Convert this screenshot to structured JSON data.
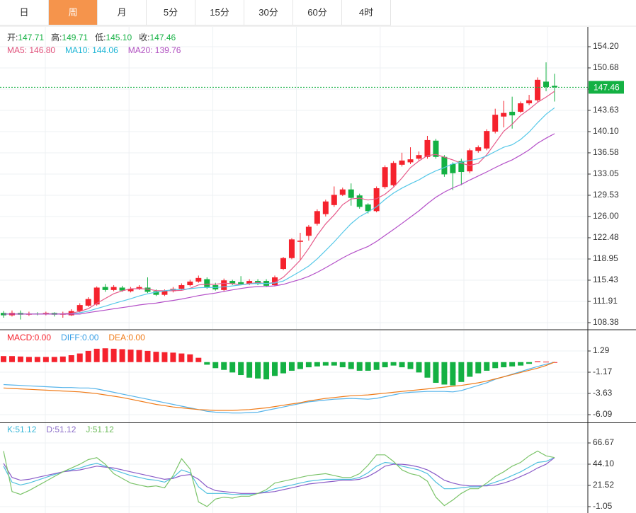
{
  "tabs": {
    "items": [
      "日",
      "周",
      "月",
      "5分",
      "15分",
      "30分",
      "60分",
      "4时"
    ],
    "active": 1
  },
  "chart_data": [
    {
      "type": "candlestick",
      "header": [
        {
          "label": "开:",
          "value": "147.71"
        },
        {
          "label": "高:",
          "value": "149.71"
        },
        {
          "label": "低:",
          "value": "145.10"
        },
        {
          "label": "收:",
          "value": "147.46"
        }
      ],
      "legend": [
        {
          "text": "MA5: 146.80",
          "color": "#e0507a"
        },
        {
          "text": "MA10: 144.06",
          "color": "#1cb5d5"
        },
        {
          "text": "MA20: 139.76",
          "color": "#b04ec0"
        }
      ],
      "up_color": "#f5222d",
      "down_color": "#14b143",
      "open": [
        110.0,
        109.6,
        110.0,
        109.7,
        109.9,
        109.8,
        110.0,
        109.7,
        109.6,
        110.3,
        111.2,
        111.4,
        114.3,
        113.8,
        114.2,
        113.6,
        114.0,
        114.2,
        113.6,
        113.0,
        113.6,
        114.0,
        114.6,
        115.2,
        115.6,
        114.6,
        113.8,
        115.3,
        115.1,
        114.8,
        115.3,
        115.3,
        114.6,
        117.3,
        119.1,
        121.8,
        122.8,
        124.8,
        126.4,
        127.9,
        129.6,
        130.5,
        129.5,
        128.0,
        126.9,
        130.9,
        131.2,
        134.6,
        135.0,
        135.6,
        135.9,
        138.6,
        135.9,
        134.7,
        135.2,
        133.5,
        136.9,
        137.3,
        140.1,
        142.6,
        143.4,
        143.4,
        144.8,
        145.3,
        148.4,
        147.71
      ],
      "high": [
        110.3,
        110.4,
        110.4,
        110.2,
        110.1,
        110.2,
        110.1,
        110.2,
        110.6,
        111.6,
        112.6,
        114.4,
        114.8,
        114.6,
        114.5,
        114.3,
        114.6,
        115.9,
        113.9,
        113.9,
        114.3,
        114.9,
        115.5,
        116.2,
        115.9,
        115.0,
        115.7,
        115.5,
        116.1,
        115.6,
        115.6,
        115.6,
        116.2,
        119.3,
        122.4,
        123.3,
        124.6,
        127.2,
        128.8,
        131.0,
        130.8,
        131.5,
        129.8,
        128.2,
        131.0,
        134.5,
        135.2,
        136.6,
        137.5,
        136.8,
        139.4,
        138.9,
        136.2,
        135.0,
        135.6,
        137.3,
        137.8,
        140.5,
        143.9,
        145.2,
        145.9,
        145.1,
        146.2,
        149.1,
        151.6,
        149.71
      ],
      "low": [
        109.2,
        109.4,
        108.9,
        109.5,
        109.6,
        109.6,
        109.4,
        109.2,
        109.5,
        110.1,
        111.0,
        111.2,
        113.5,
        113.6,
        113.5,
        113.4,
        113.8,
        113.3,
        112.8,
        112.8,
        113.4,
        113.8,
        114.4,
        115.0,
        114.0,
        113.7,
        113.6,
        114.6,
        114.6,
        114.6,
        114.6,
        114.3,
        114.4,
        117.1,
        118.9,
        118.8,
        122.0,
        124.5,
        126.0,
        127.6,
        129.4,
        127.8,
        127.3,
        126.5,
        126.7,
        130.6,
        131.0,
        134.3,
        134.7,
        135.3,
        135.6,
        135.6,
        132.6,
        130.4,
        131.2,
        133.2,
        136.6,
        137.0,
        139.8,
        140.8,
        140.6,
        143.2,
        144.5,
        145.0,
        146.8,
        145.1
      ],
      "close": [
        109.6,
        110.0,
        109.7,
        109.9,
        109.8,
        110.0,
        109.7,
        109.9,
        110.3,
        111.3,
        112.3,
        114.2,
        113.8,
        114.3,
        113.7,
        114.0,
        114.3,
        113.5,
        113.0,
        113.6,
        114.0,
        114.6,
        115.2,
        115.8,
        114.3,
        113.9,
        115.4,
        114.9,
        114.8,
        115.3,
        114.8,
        114.5,
        115.9,
        119.1,
        122.2,
        122.0,
        124.3,
        126.9,
        128.5,
        129.6,
        130.5,
        129.1,
        127.6,
        126.9,
        130.7,
        134.2,
        134.9,
        135.3,
        135.5,
        136.2,
        138.7,
        135.9,
        133.0,
        133.2,
        133.4,
        137.0,
        137.5,
        140.2,
        142.9,
        143.2,
        142.8,
        144.8,
        145.3,
        148.7,
        147.5,
        147.46
      ],
      "series": [
        {
          "name": "MA5",
          "color": "#e65a8a",
          "values": [
            109.8,
            109.8,
            109.8,
            109.8,
            109.8,
            109.88,
            109.82,
            109.86,
            109.94,
            110.24,
            110.7,
            111.6,
            112.38,
            113.18,
            113.66,
            114.0,
            114.02,
            113.96,
            113.7,
            113.68,
            113.68,
            113.74,
            114.08,
            114.64,
            114.78,
            114.76,
            114.92,
            114.86,
            114.66,
            114.86,
            115.04,
            114.86,
            115.06,
            115.92,
            117.3,
            118.74,
            120.7,
            122.9,
            124.78,
            126.26,
            127.96,
            128.92,
            129.06,
            128.74,
            128.96,
            129.7,
            130.86,
            132.4,
            134.12,
            135.22,
            136.12,
            136.32,
            135.86,
            135.4,
            134.84,
            134.5,
            134.82,
            136.26,
            138.2,
            140.16,
            141.32,
            142.78,
            143.8,
            144.96,
            145.82,
            146.8
          ]
        },
        {
          "name": "MA10",
          "color": "#56c8e8",
          "values": [
            109.8,
            109.8,
            109.8,
            109.8,
            109.8,
            109.8,
            109.8,
            109.8,
            109.8,
            110.02,
            110.29,
            110.71,
            111.12,
            111.56,
            111.95,
            112.35,
            112.81,
            113.17,
            113.44,
            113.67,
            113.84,
            113.88,
            114.02,
            114.17,
            114.23,
            114.22,
            114.33,
            114.47,
            114.65,
            114.82,
            114.9,
            114.89,
            114.96,
            115.29,
            116.08,
            116.89,
            117.78,
            118.98,
            120.35,
            121.78,
            123.35,
            124.81,
            125.98,
            126.76,
            127.61,
            128.83,
            129.89,
            130.73,
            131.43,
            132.09,
            132.91,
            133.59,
            134.13,
            134.76,
            135.03,
            135.31,
            135.57,
            136.06,
            136.8,
            137.5,
            137.91,
            138.8,
            140.03,
            141.58,
            142.99,
            144.06
          ]
        },
        {
          "name": "MA20",
          "color": "#b450c8",
          "values": [
            109.8,
            109.8,
            109.8,
            109.8,
            109.8,
            109.8,
            109.8,
            109.8,
            109.8,
            109.8,
            110.05,
            110.26,
            110.46,
            110.68,
            110.88,
            111.08,
            111.31,
            111.49,
            111.62,
            111.85,
            112.07,
            112.3,
            112.57,
            112.87,
            113.09,
            113.29,
            113.57,
            113.82,
            114.05,
            114.25,
            114.37,
            114.39,
            114.49,
            114.73,
            115.16,
            115.56,
            116.06,
            116.73,
            117.5,
            118.3,
            119.13,
            119.85,
            120.47,
            121.03,
            121.85,
            122.86,
            123.84,
            124.86,
            125.89,
            126.94,
            128.13,
            129.2,
            130.06,
            130.76,
            131.32,
            132.07,
            132.73,
            133.4,
            134.12,
            134.8,
            135.41,
            136.2,
            137.08,
            138.17,
            139.01,
            139.76
          ]
        }
      ],
      "last_price": {
        "value": 147.46,
        "label": "147.46",
        "color": "#14b143"
      },
      "ylim": [
        107.32,
        157.49
      ],
      "yticks": [
        {
          "value": 154.2,
          "label": "154.20"
        },
        {
          "value": 150.68,
          "label": "150.68"
        },
        {
          "value": 147.15,
          "label": "147.15"
        },
        {
          "value": 143.63,
          "label": "143.63"
        },
        {
          "value": 140.1,
          "label": "140.10"
        },
        {
          "value": 136.58,
          "label": "136.58"
        },
        {
          "value": 133.05,
          "label": "133.05"
        },
        {
          "value": 129.53,
          "label": "129.53"
        },
        {
          "value": 126.0,
          "label": "126.00"
        },
        {
          "value": 122.48,
          "label": "122.48"
        },
        {
          "value": 118.95,
          "label": "118.95"
        },
        {
          "value": 115.43,
          "label": "115.43"
        },
        {
          "value": 111.91,
          "label": "111.91"
        },
        {
          "value": 108.38,
          "label": "108.38"
        }
      ],
      "grid": true
    },
    {
      "type": "macd",
      "legend": [
        {
          "text": "MACD:0.00",
          "color": "#f5222d"
        },
        {
          "text": "DIFF:0.00",
          "color": "#3aa0e6"
        },
        {
          "text": "DEA:0.00",
          "color": "#f07c1a"
        }
      ],
      "up_color": "#f5222d",
      "down_color": "#14b143",
      "values": [
        0.7,
        0.7,
        0.65,
        0.6,
        0.6,
        0.6,
        0.6,
        0.65,
        0.8,
        1.0,
        1.3,
        1.55,
        1.6,
        1.55,
        1.5,
        1.45,
        1.4,
        1.3,
        1.2,
        1.15,
        1.1,
        1.0,
        0.9,
        0.5,
        -0.3,
        -0.7,
        -0.9,
        -1.2,
        -1.5,
        -1.8,
        -1.9,
        -2.0,
        -1.6,
        -1.3,
        -1.0,
        -0.8,
        -0.6,
        -0.5,
        -0.4,
        -0.4,
        -0.6,
        -0.8,
        -1.0,
        -1.0,
        -0.9,
        -0.6,
        -0.4,
        -0.6,
        -0.8,
        -1.2,
        -1.8,
        -2.4,
        -2.6,
        -2.7,
        -2.3,
        -1.7,
        -1.3,
        -1.0,
        -0.7,
        -0.6,
        -0.5,
        -0.4,
        -0.2,
        0.1,
        0.05,
        0.0
      ],
      "series": [
        {
          "name": "DIFF",
          "color": "#56b4ea",
          "values": [
            -2.6,
            -2.65,
            -2.7,
            -2.75,
            -2.8,
            -2.85,
            -2.9,
            -2.95,
            -2.95,
            -3.0,
            -3.0,
            -3.1,
            -3.3,
            -3.5,
            -3.7,
            -3.9,
            -4.1,
            -4.3,
            -4.5,
            -4.7,
            -4.9,
            -5.1,
            -5.3,
            -5.5,
            -5.7,
            -5.8,
            -5.85,
            -5.9,
            -5.9,
            -5.85,
            -5.8,
            -5.6,
            -5.4,
            -5.2,
            -5.0,
            -4.8,
            -4.6,
            -4.5,
            -4.4,
            -4.3,
            -4.25,
            -4.2,
            -4.25,
            -4.3,
            -4.2,
            -4.0,
            -3.8,
            -3.6,
            -3.5,
            -3.45,
            -3.4,
            -3.4,
            -3.4,
            -3.45,
            -3.3,
            -3.0,
            -2.7,
            -2.4,
            -2.0,
            -1.7,
            -1.4,
            -1.1,
            -0.8,
            -0.5,
            -0.25,
            0.0
          ]
        },
        {
          "name": "DEA",
          "color": "#f07c1a",
          "values": [
            -3.0,
            -3.05,
            -3.1,
            -3.15,
            -3.2,
            -3.25,
            -3.3,
            -3.35,
            -3.4,
            -3.45,
            -3.55,
            -3.65,
            -3.8,
            -3.95,
            -4.1,
            -4.3,
            -4.5,
            -4.7,
            -4.9,
            -5.05,
            -5.2,
            -5.3,
            -5.4,
            -5.5,
            -5.55,
            -5.6,
            -5.6,
            -5.6,
            -5.55,
            -5.5,
            -5.4,
            -5.3,
            -5.15,
            -5.0,
            -4.85,
            -4.7,
            -4.5,
            -4.35,
            -4.2,
            -4.1,
            -4.0,
            -3.9,
            -3.85,
            -3.8,
            -3.7,
            -3.6,
            -3.5,
            -3.4,
            -3.3,
            -3.2,
            -3.1,
            -3.0,
            -2.9,
            -2.8,
            -2.7,
            -2.55,
            -2.4,
            -2.2,
            -1.95,
            -1.7,
            -1.45,
            -1.2,
            -0.95,
            -0.7,
            -0.4,
            0.0
          ]
        }
      ],
      "ylim": [
        -6.99,
        3.67
      ],
      "yticks": [
        1.29,
        -1.17,
        -3.63,
        -6.09
      ],
      "grid": true
    },
    {
      "type": "kdj",
      "legend": [
        {
          "text": "K:51.12",
          "color": "#3ab7d8"
        },
        {
          "text": "D:51.12",
          "color": "#8a6cc8"
        },
        {
          "text": "J:51.12",
          "color": "#6dbb5a"
        }
      ],
      "series": [
        {
          "name": "K",
          "color": "#4fc0de",
          "values": [
            42,
            25,
            22,
            24,
            27,
            30,
            33,
            36,
            38,
            40,
            43,
            45,
            42,
            38,
            35,
            32,
            30,
            28,
            27,
            25,
            30,
            38,
            35,
            20,
            13,
            13,
            13,
            12,
            12,
            12,
            13,
            15,
            18,
            20,
            22,
            24,
            26,
            27,
            28,
            28,
            28,
            28,
            30,
            35,
            42,
            46,
            45,
            42,
            40,
            38,
            34,
            25,
            18,
            18,
            19,
            20,
            20,
            22,
            25,
            28,
            32,
            36,
            41,
            46,
            47,
            51.12
          ]
        },
        {
          "name": "D",
          "color": "#8a5cc8",
          "values": [
            45,
            30,
            27,
            28,
            30,
            32,
            34,
            36,
            37,
            38,
            40,
            42,
            41,
            40,
            38,
            36,
            34,
            32,
            30,
            28,
            29,
            32,
            33,
            28,
            20,
            16,
            15,
            14,
            13,
            13,
            13,
            14,
            15,
            17,
            19,
            21,
            23,
            24,
            25,
            26,
            27,
            27,
            28,
            31,
            36,
            42,
            44,
            44,
            43,
            41,
            38,
            33,
            27,
            24,
            22,
            21,
            21,
            21,
            22,
            24,
            27,
            31,
            35,
            40,
            44,
            51.12
          ]
        },
        {
          "name": "J",
          "color": "#7cc46a",
          "values": [
            58,
            15,
            12,
            16,
            21,
            26,
            31,
            36,
            40,
            44,
            49,
            51,
            44,
            34,
            29,
            24,
            22,
            20,
            21,
            19,
            32,
            50,
            39,
            4,
            -1,
            7,
            9,
            8,
            10,
            10,
            13,
            17,
            24,
            26,
            28,
            30,
            32,
            33,
            34,
            32,
            30,
            30,
            34,
            43,
            54,
            54,
            47,
            38,
            34,
            32,
            26,
            9,
            0,
            6,
            13,
            18,
            18,
            24,
            31,
            36,
            42,
            46,
            53,
            58,
            53,
            51.12
          ]
        }
      ],
      "ylim": [
        -7.82,
        87.74
      ],
      "yticks": [
        66.67,
        {
          "value": 44.1,
          "label": "44.10"
        },
        21.52,
        -1.05
      ],
      "grid": true
    }
  ]
}
